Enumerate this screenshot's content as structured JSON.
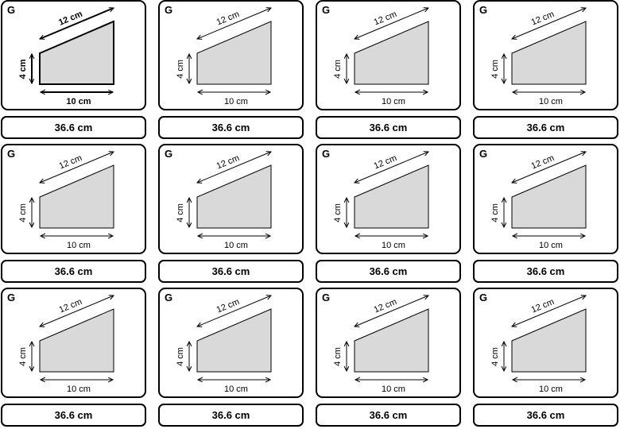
{
  "cards": [
    {
      "letter": "G",
      "side_top": "12 cm",
      "side_left": "4 cm",
      "side_bottom": "10 cm",
      "answer": "36.6 cm",
      "style": "bold"
    },
    {
      "letter": "G",
      "side_top": "12 cm",
      "side_left": "4 cm",
      "side_bottom": "10 cm",
      "answer": "36.6 cm",
      "style": "normal"
    },
    {
      "letter": "G",
      "side_top": "12 cm",
      "side_left": "4 cm",
      "side_bottom": "10 cm",
      "answer": "36.6 cm",
      "style": "normal"
    },
    {
      "letter": "G",
      "side_top": "12 cm",
      "side_left": "4 cm",
      "side_bottom": "10 cm",
      "answer": "36.6 cm",
      "style": "normal"
    },
    {
      "letter": "G",
      "side_top": "12 cm",
      "side_left": "4 cm",
      "side_bottom": "10 cm",
      "answer": "36.6 cm",
      "style": "normal"
    },
    {
      "letter": "G",
      "side_top": "12 cm",
      "side_left": "4 cm",
      "side_bottom": "10 cm",
      "answer": "36.6 cm",
      "style": "normal"
    },
    {
      "letter": "G",
      "side_top": "12 cm",
      "side_left": "4 cm",
      "side_bottom": "10 cm",
      "answer": "36.6 cm",
      "style": "normal"
    },
    {
      "letter": "G",
      "side_top": "12 cm",
      "side_left": "4 cm",
      "side_bottom": "10 cm",
      "answer": "36.6 cm",
      "style": "normal"
    },
    {
      "letter": "G",
      "side_top": "12 cm",
      "side_left": "4 cm",
      "side_bottom": "10 cm",
      "answer": "36.6 cm",
      "style": "normal"
    },
    {
      "letter": "G",
      "side_top": "12 cm",
      "side_left": "4 cm",
      "side_bottom": "10 cm",
      "answer": "36.6 cm",
      "style": "normal"
    },
    {
      "letter": "G",
      "side_top": "12 cm",
      "side_left": "4 cm",
      "side_bottom": "10 cm",
      "answer": "36.6 cm",
      "style": "normal"
    },
    {
      "letter": "G",
      "side_top": "12 cm",
      "side_left": "4 cm",
      "side_bottom": "10 cm",
      "answer": "36.6 cm",
      "style": "normal"
    }
  ],
  "colors": {
    "shape_fill": "#d9d9d9",
    "border": "#000000"
  }
}
